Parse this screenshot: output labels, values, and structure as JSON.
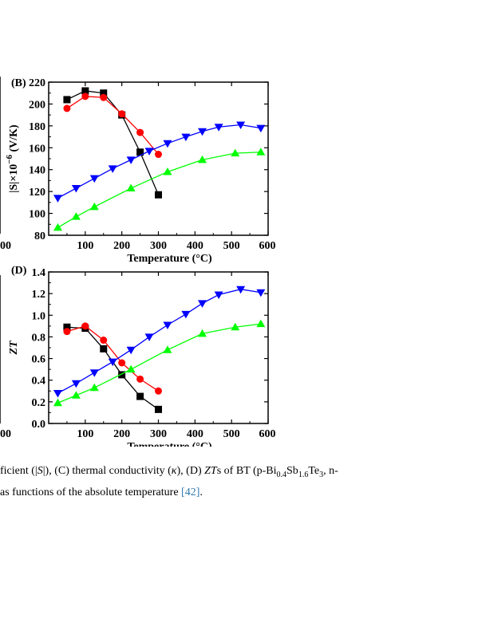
{
  "chart_data": [
    {
      "panel": "(B)",
      "type": "line",
      "xlabel": "Temperature",
      "xunit": "(°C)",
      "ylabel": "|S|×10",
      "ylabel_exp": "−6",
      "ylabel_unit": "(V/K)",
      "xlim": [
        0,
        600
      ],
      "ylim": [
        80,
        220
      ],
      "xticks": [
        100,
        200,
        300,
        400,
        500,
        600
      ],
      "yticks": [
        80,
        100,
        120,
        140,
        160,
        180,
        200,
        220
      ],
      "left_edge_tick": "00",
      "series": [
        {
          "color": "#000000",
          "marker": "square",
          "x": [
            50,
            100,
            150,
            200,
            250,
            300
          ],
          "y": [
            204,
            212,
            210,
            190,
            156,
            117
          ]
        },
        {
          "color": "#ff0000",
          "marker": "circle",
          "x": [
            50,
            100,
            150,
            200,
            250,
            300
          ],
          "y": [
            196,
            207,
            206,
            191,
            174,
            154
          ]
        },
        {
          "color": "#0000ff",
          "marker": "triangle-down",
          "x": [
            25,
            75,
            125,
            175,
            225,
            275,
            325,
            375,
            420,
            465,
            525,
            580
          ],
          "y": [
            114,
            123,
            132,
            141,
            149,
            157,
            164,
            170,
            175,
            179,
            181,
            178
          ]
        },
        {
          "color": "#00ff00",
          "marker": "triangle-up",
          "x": [
            25,
            75,
            125,
            225,
            325,
            420,
            510,
            580
          ],
          "y": [
            87,
            97,
            106,
            123,
            138,
            149,
            155,
            156
          ]
        }
      ]
    },
    {
      "panel": "(D)",
      "type": "line",
      "xlabel": "Temperature",
      "xunit": "(°C)",
      "ylabel": "ZT",
      "xlim": [
        0,
        600
      ],
      "ylim": [
        0.0,
        1.4
      ],
      "xticks": [
        100,
        200,
        300,
        400,
        500,
        600
      ],
      "yticks": [
        "0.0",
        "0.2",
        "0.4",
        "0.6",
        "0.8",
        "1.0",
        "1.2",
        "1.4"
      ],
      "left_edge_tick": "00",
      "series": [
        {
          "color": "#000000",
          "marker": "square",
          "x": [
            50,
            100,
            150,
            200,
            250,
            300
          ],
          "y": [
            0.89,
            0.88,
            0.69,
            0.45,
            0.25,
            0.13
          ]
        },
        {
          "color": "#ff0000",
          "marker": "circle",
          "x": [
            50,
            100,
            150,
            200,
            250,
            300
          ],
          "y": [
            0.85,
            0.9,
            0.77,
            0.56,
            0.41,
            0.3
          ]
        },
        {
          "color": "#0000ff",
          "marker": "triangle-down",
          "x": [
            25,
            75,
            125,
            175,
            225,
            275,
            325,
            375,
            420,
            465,
            525,
            580
          ],
          "y": [
            0.28,
            0.37,
            0.47,
            0.57,
            0.68,
            0.8,
            0.91,
            1.01,
            1.11,
            1.19,
            1.24,
            1.21
          ]
        },
        {
          "color": "#00ff00",
          "marker": "triangle-up",
          "x": [
            25,
            75,
            125,
            225,
            325,
            420,
            510,
            580
          ],
          "y": [
            0.19,
            0.26,
            0.33,
            0.5,
            0.68,
            0.83,
            0.89,
            0.92
          ]
        }
      ]
    }
  ],
  "caption": {
    "line1_a": "ficient (|",
    "line1_S": "S",
    "line1_b": "|), (C) thermal conductivity (",
    "line1_kappa": "κ",
    "line1_c": "), (D) ",
    "line1_ZT": "ZT",
    "line1_d": "s of BT (p-Bi",
    "line1_sub1": "0.4",
    "line1_e": "Sb",
    "line1_sub2": "1.6",
    "line1_f": "Te",
    "line1_sub3": "3",
    "line1_g": ", n-",
    "line2_a": "as functions of the absolute temperature ",
    "line2_ref": "[42]",
    "line2_b": "."
  }
}
